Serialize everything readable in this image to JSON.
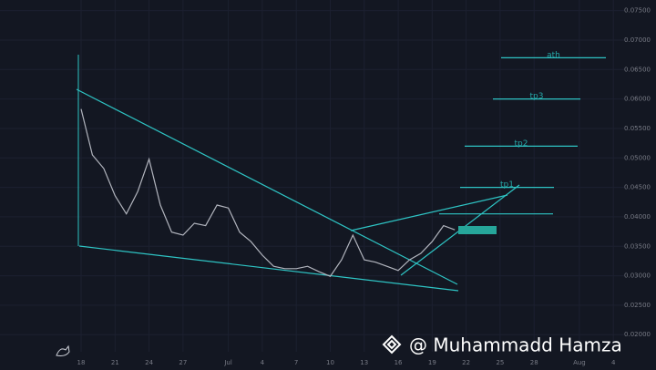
{
  "chart_data": {
    "type": "line",
    "categories": [
      "18",
      null,
      null,
      "21",
      null,
      null,
      "24",
      null,
      null,
      "27",
      null,
      null,
      null,
      "Jul",
      null,
      null,
      "4",
      null,
      null,
      "7",
      null,
      null,
      "10",
      null,
      null,
      "13",
      null,
      null,
      "16",
      null,
      null,
      "19",
      null,
      null,
      "22",
      null,
      null,
      "25",
      null,
      null,
      "28",
      null,
      null,
      null,
      "Aug",
      null,
      null,
      "4"
    ],
    "values": [
      0.0583,
      0.0505,
      0.0482,
      0.0436,
      0.0405,
      0.0443,
      0.0498,
      0.042,
      0.0374,
      0.0369,
      0.0389,
      0.0385,
      0.042,
      0.0415,
      0.0374,
      0.0358,
      0.0335,
      0.0316,
      0.0312,
      0.0312,
      0.0316,
      0.0307,
      0.0299,
      0.0327,
      0.0369,
      0.0327,
      0.0323,
      0.0316,
      0.0309,
      0.0327,
      0.0338,
      0.0358,
      0.0385,
      0.0378,
      null,
      null,
      null,
      null,
      null,
      null,
      null,
      null,
      null,
      null,
      null,
      null,
      null,
      null
    ],
    "color": "#b2b5be",
    "ylim": [
      0.0171,
      0.0768
    ],
    "yticks": [
      {
        "value": 0.02,
        "label": "0.02000"
      },
      {
        "value": 0.025,
        "label": "0.02500"
      },
      {
        "value": 0.03,
        "label": "0.03000"
      },
      {
        "value": 0.035,
        "label": "0.03500"
      },
      {
        "value": 0.04,
        "label": "0.04000"
      },
      {
        "value": 0.045,
        "label": "0.04500"
      },
      {
        "value": 0.05,
        "label": "0.05000"
      },
      {
        "value": 0.055,
        "label": "0.05500"
      },
      {
        "value": 0.06,
        "label": "0.06000"
      },
      {
        "value": 0.065,
        "label": "0.06500"
      },
      {
        "value": 0.07,
        "label": "0.07000"
      },
      {
        "value": 0.075,
        "label": "0.07500"
      }
    ],
    "grid": true,
    "levels": [
      {
        "label": "ath",
        "value": 0.067
      },
      {
        "label": "tp3",
        "value": 0.06
      },
      {
        "label": "tp2",
        "value": 0.052
      },
      {
        "label": "tp1",
        "value": 0.045
      }
    ],
    "resistance": 0.0405,
    "watermark": "@ Muhammadd Hamza"
  }
}
